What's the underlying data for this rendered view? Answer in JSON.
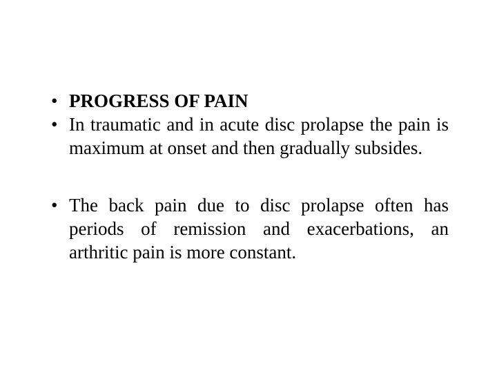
{
  "slide": {
    "background_color": "#ffffff",
    "text_color": "#000000",
    "font_family": "Times New Roman",
    "font_size_pt": 20,
    "bullet_char": "•",
    "bullets": [
      {
        "heading": "PROGRESS OF PAIN",
        "items": [
          "In traumatic and in acute disc prolapse the pain is maximum at onset and then gradually subsides."
        ]
      },
      {
        "heading": null,
        "items": [
          "The back pain due to disc prolapse often has periods of remission and exacerbations, an arthritic pain is more constant."
        ]
      }
    ]
  }
}
